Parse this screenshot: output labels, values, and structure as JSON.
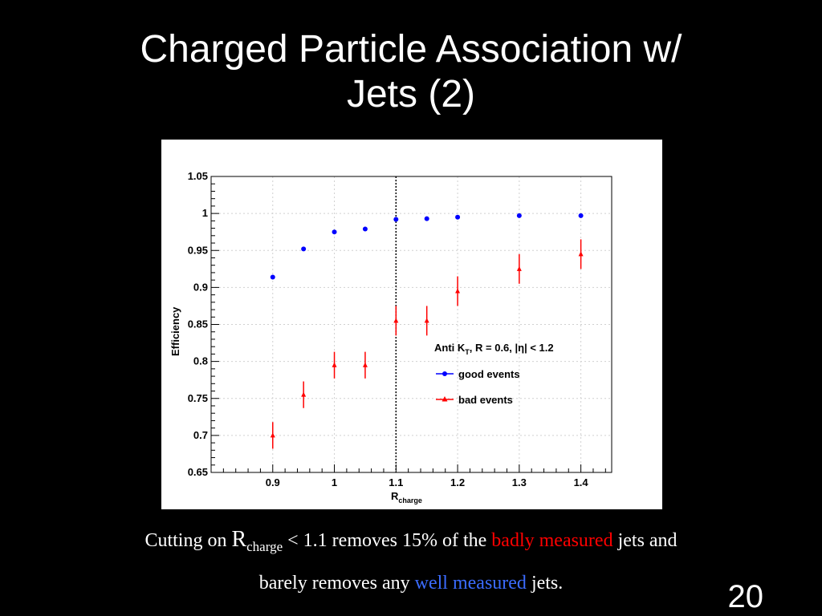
{
  "slide": {
    "title_line1": "Charged Particle Association w/",
    "title_line2": "Jets (2)",
    "page_number": "20"
  },
  "caption": {
    "line1_pre": "Cutting on ",
    "r_symbol": "R",
    "r_subscript": "charge",
    "line1_mid": " < 1.1 removes 15% of the ",
    "line1_red": "badly measured",
    "line1_post": " jets and",
    "line2_pre": "barely removes any ",
    "line2_blue": "well measured",
    "line2_post": " jets."
  },
  "chart_data": {
    "type": "scatter",
    "xlabel_main": "R",
    "xlabel_sub": "charge",
    "ylabel": "Efficiency",
    "xlim": [
      0.8,
      1.45
    ],
    "ylim": [
      0.65,
      1.05
    ],
    "xticks": [
      0.9,
      1.0,
      1.1,
      1.2,
      1.3,
      1.4
    ],
    "xtick_labels": [
      "0.9",
      "1",
      "1.1",
      "1.2",
      "1.3",
      "1.4"
    ],
    "yticks": [
      0.65,
      0.7,
      0.75,
      0.8,
      0.85,
      0.9,
      0.95,
      1.0,
      1.05
    ],
    "ytick_labels": [
      "0.65",
      "0.7",
      "0.75",
      "0.8",
      "0.85",
      "0.9",
      "0.95",
      "1",
      "1.05"
    ],
    "cut_line_x": 1.1,
    "legend": {
      "header_main": "Anti K",
      "header_sub": "T",
      "header_rest": ", R = 0.6, |η| < 1.2",
      "placement": "center-right"
    },
    "x": [
      0.9,
      0.95,
      1.0,
      1.05,
      1.1,
      1.15,
      1.2,
      1.3,
      1.4
    ],
    "series": [
      {
        "name": "good events",
        "color": "#0000ff",
        "marker": "circle",
        "values": [
          0.914,
          0.952,
          0.975,
          0.979,
          0.992,
          0.993,
          0.995,
          0.997,
          0.997
        ],
        "errors": [
          0.002,
          0.002,
          0.002,
          0.002,
          0.002,
          0.002,
          0.002,
          0.002,
          0.002
        ]
      },
      {
        "name": "bad events",
        "color": "#ff0000",
        "marker": "triangle",
        "values": [
          0.7,
          0.755,
          0.795,
          0.795,
          0.855,
          0.855,
          0.895,
          0.925,
          0.945
        ],
        "errors": [
          0.018,
          0.018,
          0.018,
          0.018,
          0.02,
          0.02,
          0.02,
          0.02,
          0.02
        ]
      }
    ]
  }
}
